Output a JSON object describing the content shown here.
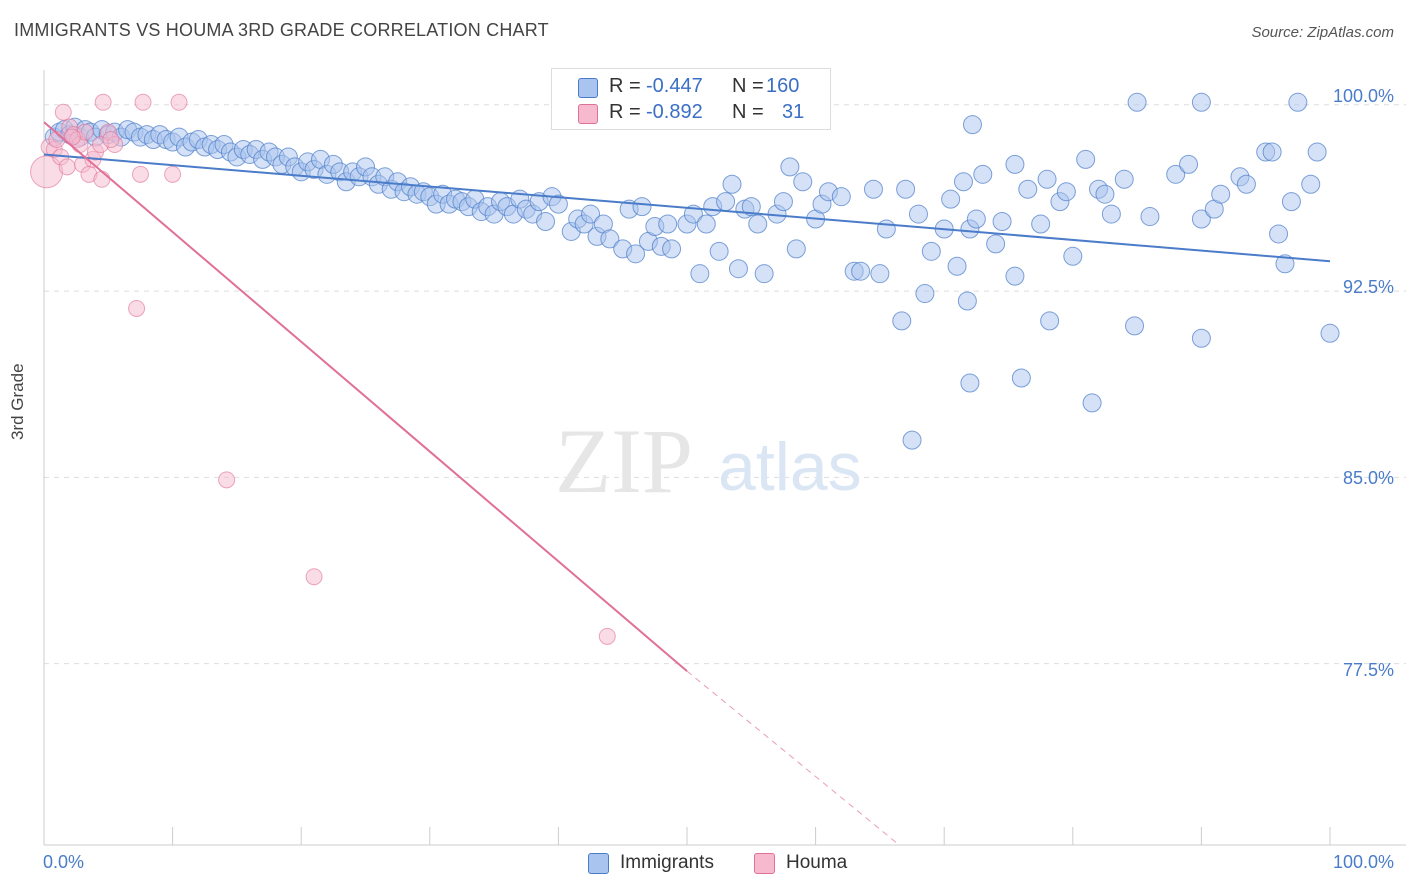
{
  "title": "IMMIGRANTS VS HOUMA 3RD GRADE CORRELATION CHART",
  "source": "Source: ZipAtlas.com",
  "watermark": {
    "zip": "ZIP",
    "atlas": "atlas"
  },
  "legend_box": {
    "r_label": "R =",
    "n_label": "N =",
    "rows": [
      {
        "r": "-0.447",
        "n": "160"
      },
      {
        "r": "-0.892",
        "n": "31"
      }
    ]
  },
  "colors": {
    "blue": "#4a7cc9",
    "blue_fill": "#a9c4ee",
    "pink": "#e07098",
    "pink_fill": "#f6b9cd",
    "grid": "#dddddd"
  },
  "chart_data": {
    "type": "scatter",
    "xlabel": "",
    "ylabel": "3rd Grade",
    "xlim": [
      0,
      100
    ],
    "ylim": [
      70.2,
      101.4
    ],
    "x_tick_labels": [
      "0.0%",
      "100.0%"
    ],
    "y_ticks": [
      100.0,
      92.5,
      85.0,
      77.5
    ],
    "y_tick_labels": [
      "100.0%",
      "92.5%",
      "85.0%",
      "77.5%"
    ],
    "grid": true,
    "legend_position": "bottom-center",
    "series": [
      {
        "name": "Immigrants",
        "r": -0.447,
        "n": 160,
        "trend": {
          "x0": 0,
          "y0": 98.0,
          "x1": 100,
          "y1": 93.7
        },
        "points": [
          [
            0.8,
            98.7
          ],
          [
            1.2,
            98.9
          ],
          [
            1.6,
            99.0
          ],
          [
            2.0,
            98.8
          ],
          [
            2.4,
            99.1
          ],
          [
            2.8,
            98.7
          ],
          [
            3.2,
            99.0
          ],
          [
            3.6,
            98.9
          ],
          [
            4.0,
            98.7
          ],
          [
            4.5,
            99.0
          ],
          [
            5.0,
            98.8
          ],
          [
            5.5,
            98.9
          ],
          [
            6.0,
            98.7
          ],
          [
            6.5,
            99.0
          ],
          [
            7.0,
            98.9
          ],
          [
            7.5,
            98.7
          ],
          [
            8.0,
            98.8
          ],
          [
            8.5,
            98.6
          ],
          [
            9.0,
            98.8
          ],
          [
            9.5,
            98.6
          ],
          [
            10.0,
            98.5
          ],
          [
            10.5,
            98.7
          ],
          [
            11.0,
            98.3
          ],
          [
            11.5,
            98.5
          ],
          [
            12.0,
            98.6
          ],
          [
            12.5,
            98.3
          ],
          [
            13.0,
            98.4
          ],
          [
            13.5,
            98.2
          ],
          [
            14.0,
            98.4
          ],
          [
            14.5,
            98.1
          ],
          [
            15.0,
            97.9
          ],
          [
            15.5,
            98.2
          ],
          [
            16.0,
            98.0
          ],
          [
            16.5,
            98.2
          ],
          [
            17.0,
            97.8
          ],
          [
            17.5,
            98.1
          ],
          [
            18.0,
            97.9
          ],
          [
            18.5,
            97.6
          ],
          [
            19.0,
            97.9
          ],
          [
            19.5,
            97.5
          ],
          [
            20.0,
            97.3
          ],
          [
            20.5,
            97.7
          ],
          [
            21.0,
            97.4
          ],
          [
            21.5,
            97.8
          ],
          [
            22.0,
            97.2
          ],
          [
            22.5,
            97.6
          ],
          [
            23.0,
            97.3
          ],
          [
            23.5,
            96.9
          ],
          [
            24.0,
            97.3
          ],
          [
            24.5,
            97.1
          ],
          [
            25.0,
            97.5
          ],
          [
            25.5,
            97.1
          ],
          [
            26.0,
            96.8
          ],
          [
            26.5,
            97.1
          ],
          [
            27.0,
            96.6
          ],
          [
            27.5,
            96.9
          ],
          [
            28.0,
            96.5
          ],
          [
            28.5,
            96.7
          ],
          [
            29.0,
            96.4
          ],
          [
            29.5,
            96.5
          ],
          [
            30.0,
            96.3
          ],
          [
            30.5,
            96.0
          ],
          [
            31.0,
            96.4
          ],
          [
            31.5,
            96.0
          ],
          [
            32.0,
            96.2
          ],
          [
            32.5,
            96.1
          ],
          [
            33.0,
            95.9
          ],
          [
            33.5,
            96.2
          ],
          [
            34.0,
            95.7
          ],
          [
            34.5,
            95.9
          ],
          [
            35.0,
            95.6
          ],
          [
            35.5,
            96.1
          ],
          [
            36.0,
            95.9
          ],
          [
            36.5,
            95.6
          ],
          [
            37.0,
            96.2
          ],
          [
            37.5,
            95.8
          ],
          [
            38.0,
            95.6
          ],
          [
            38.5,
            96.1
          ],
          [
            39.0,
            95.3
          ],
          [
            39.5,
            96.3
          ],
          [
            40.0,
            96.0
          ],
          [
            41.0,
            94.9
          ],
          [
            41.5,
            95.4
          ],
          [
            42.0,
            95.2
          ],
          [
            42.5,
            95.6
          ],
          [
            43.0,
            94.7
          ],
          [
            43.5,
            95.2
          ],
          [
            44.0,
            94.6
          ],
          [
            45.0,
            94.2
          ],
          [
            45.5,
            95.8
          ],
          [
            46.0,
            94.0
          ],
          [
            46.5,
            95.9
          ],
          [
            47.0,
            94.5
          ],
          [
            47.5,
            95.1
          ],
          [
            48.0,
            94.3
          ],
          [
            48.5,
            95.2
          ],
          [
            48.8,
            94.2
          ],
          [
            50.0,
            95.2
          ],
          [
            50.5,
            95.6
          ],
          [
            51.0,
            93.2
          ],
          [
            51.5,
            95.2
          ],
          [
            52.0,
            95.9
          ],
          [
            52.5,
            94.1
          ],
          [
            53.0,
            96.1
          ],
          [
            53.5,
            96.8
          ],
          [
            54.0,
            93.4
          ],
          [
            54.5,
            95.8
          ],
          [
            55.0,
            95.9
          ],
          [
            55.5,
            95.2
          ],
          [
            56.0,
            93.2
          ],
          [
            57.0,
            95.6
          ],
          [
            57.5,
            96.1
          ],
          [
            58.0,
            97.5
          ],
          [
            58.5,
            94.2
          ],
          [
            59.0,
            96.9
          ],
          [
            60.0,
            95.4
          ],
          [
            60.5,
            96.0
          ],
          [
            61.0,
            96.5
          ],
          [
            62.0,
            96.3
          ],
          [
            63.0,
            93.3
          ],
          [
            63.5,
            93.3
          ],
          [
            64.5,
            96.6
          ],
          [
            65.0,
            93.2
          ],
          [
            65.5,
            95.0
          ],
          [
            67.0,
            96.6
          ],
          [
            68.0,
            95.6
          ],
          [
            69.0,
            94.1
          ],
          [
            70.0,
            95.0
          ],
          [
            70.5,
            96.2
          ],
          [
            71.0,
            93.5
          ],
          [
            72.0,
            95.0
          ],
          [
            73.0,
            97.2
          ],
          [
            74.0,
            94.4
          ],
          [
            74.5,
            95.3
          ],
          [
            75.5,
            97.6
          ],
          [
            76.5,
            96.6
          ],
          [
            77.5,
            95.2
          ],
          [
            78.0,
            97.0
          ],
          [
            79.0,
            96.1
          ],
          [
            79.5,
            96.5
          ],
          [
            80.0,
            93.9
          ],
          [
            81.0,
            97.8
          ],
          [
            82.0,
            96.6
          ],
          [
            82.5,
            96.4
          ],
          [
            83.0,
            95.6
          ],
          [
            84.0,
            97.0
          ],
          [
            84.8,
            91.1
          ],
          [
            86.0,
            95.5
          ],
          [
            88.0,
            97.2
          ],
          [
            89.0,
            97.6
          ],
          [
            90.0,
            95.4
          ],
          [
            91.0,
            95.8
          ],
          [
            91.5,
            96.4
          ],
          [
            93.0,
            97.1
          ],
          [
            93.5,
            96.8
          ],
          [
            95.0,
            98.1
          ],
          [
            95.5,
            98.1
          ],
          [
            96.0,
            94.8
          ],
          [
            97.0,
            96.1
          ],
          [
            98.5,
            96.8
          ],
          [
            99.0,
            98.1
          ],
          [
            68.5,
            92.4
          ],
          [
            72.5,
            95.4
          ],
          [
            67.5,
            86.5
          ],
          [
            75.5,
            93.1
          ],
          [
            71.5,
            96.9
          ],
          [
            78.2,
            91.3
          ],
          [
            72.2,
            99.2
          ],
          [
            66.7,
            91.3
          ],
          [
            71.8,
            92.1
          ],
          [
            85.0,
            100.1
          ],
          [
            90.0,
            100.1
          ],
          [
            97.5,
            100.1
          ],
          [
            96.5,
            93.6
          ],
          [
            90.0,
            90.6
          ],
          [
            100.0,
            90.8
          ],
          [
            81.5,
            88.0
          ],
          [
            76.0,
            89.0
          ],
          [
            72.0,
            88.8
          ]
        ]
      },
      {
        "name": "Houma",
        "r": -0.892,
        "n": 31,
        "trend": {
          "x0": 0,
          "y0": 99.3,
          "x1": 50,
          "y1": 77.2,
          "x_dash_end": 66.5,
          "y_dash_end": 70.2
        },
        "points": [
          [
            0.2,
            97.3
          ],
          [
            0.4,
            98.3
          ],
          [
            0.8,
            98.2
          ],
          [
            1.0,
            98.6
          ],
          [
            1.3,
            97.9
          ],
          [
            1.5,
            99.7
          ],
          [
            1.8,
            97.5
          ],
          [
            2.0,
            99.1
          ],
          [
            2.3,
            98.8
          ],
          [
            2.6,
            98.6
          ],
          [
            2.8,
            98.4
          ],
          [
            3.0,
            97.6
          ],
          [
            3.2,
            98.9
          ],
          [
            3.5,
            97.2
          ],
          [
            3.8,
            97.8
          ],
          [
            4.0,
            98.1
          ],
          [
            4.5,
            97.0
          ],
          [
            4.6,
            100.1
          ],
          [
            5.0,
            98.9
          ],
          [
            5.5,
            98.4
          ],
          [
            7.5,
            97.2
          ],
          [
            7.7,
            100.1
          ],
          [
            10.0,
            97.2
          ],
          [
            10.5,
            100.1
          ],
          [
            7.2,
            91.8
          ],
          [
            14.2,
            84.9
          ],
          [
            21.0,
            81.0
          ],
          [
            43.8,
            78.6
          ],
          [
            4.4,
            98.4
          ],
          [
            2.2,
            98.7
          ],
          [
            5.2,
            98.6
          ]
        ]
      }
    ]
  },
  "bottom_legend": [
    {
      "label": "Immigrants"
    },
    {
      "label": "Houma"
    }
  ]
}
